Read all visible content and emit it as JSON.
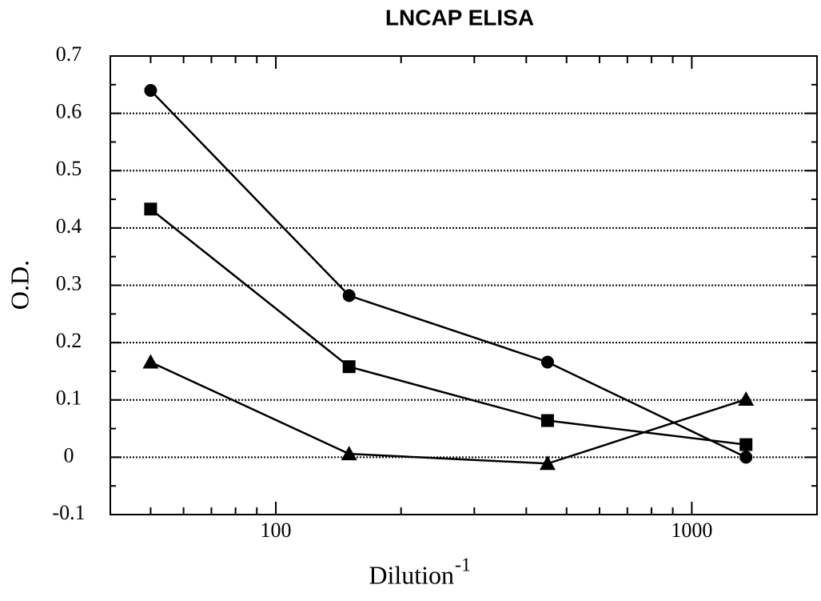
{
  "chart_data": {
    "type": "line",
    "title": "LNCAP  ELISA",
    "x_label": "Dilution",
    "x_label_exponent": "-1",
    "y_label": "O.D.",
    "x": [
      50,
      150,
      450,
      1350
    ],
    "series": [
      {
        "marker": "circle",
        "color": "#000000",
        "values": [
          0.64,
          0.282,
          0.166,
          0.0
        ]
      },
      {
        "marker": "square",
        "color": "#000000",
        "values": [
          0.433,
          0.158,
          0.064,
          0.022
        ]
      },
      {
        "marker": "triangle",
        "color": "#000000",
        "values": [
          0.166,
          0.006,
          -0.011,
          0.101
        ]
      }
    ],
    "xscale": "log",
    "xlim": [
      40,
      2000
    ],
    "xticks": [
      100,
      1000
    ],
    "xminorticks": [
      40,
      50,
      60,
      70,
      80,
      90,
      200,
      300,
      400,
      500,
      600,
      700,
      800,
      900,
      2000
    ],
    "ylim": [
      -0.1,
      0.7
    ],
    "yticks": [
      -0.1,
      0,
      0.1,
      0.2,
      0.3,
      0.4,
      0.5,
      0.6,
      0.7
    ],
    "yminorticks": [
      -0.05,
      0.05,
      0.15,
      0.25,
      0.35,
      0.45,
      0.55,
      0.65
    ],
    "grid": true
  }
}
